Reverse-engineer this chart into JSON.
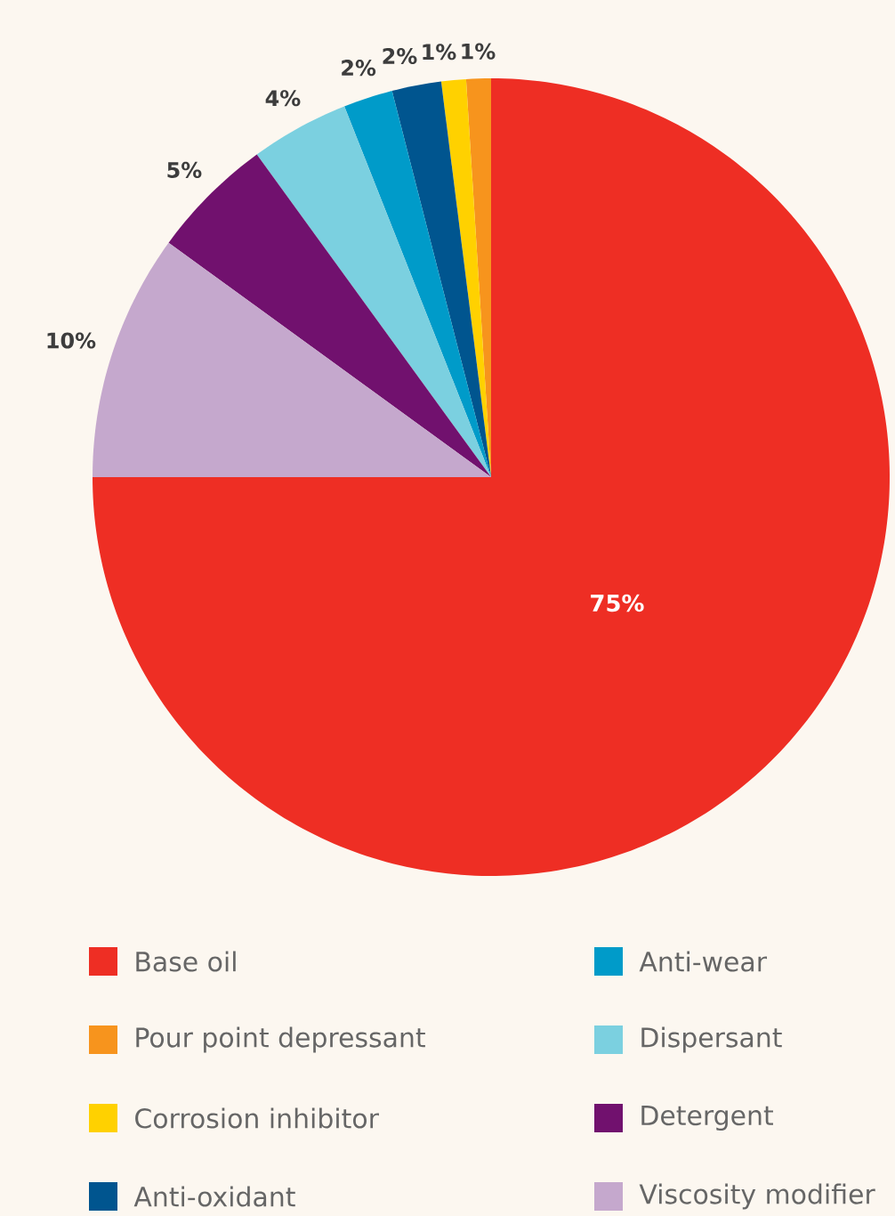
{
  "chart_data": {
    "type": "pie",
    "categories": [
      "Base oil",
      "Pour point depressant",
      "Corrosion inhibitor",
      "Anti-oxidant",
      "Anti-wear",
      "Dispersant",
      "Detergent",
      "Viscosity modifier"
    ],
    "values": [
      75,
      1,
      1,
      2,
      2,
      4,
      5,
      10
    ],
    "colors": [
      "#ee2e24",
      "#f7941d",
      "#ffd100",
      "#00558f",
      "#009bc9",
      "#7bd0e0",
      "#71116e",
      "#c5a8cd"
    ],
    "value_labels": [
      "75%",
      "1%",
      "1%",
      "2%",
      "2%",
      "4%",
      "5%",
      "10%"
    ],
    "legend": "bottom"
  }
}
